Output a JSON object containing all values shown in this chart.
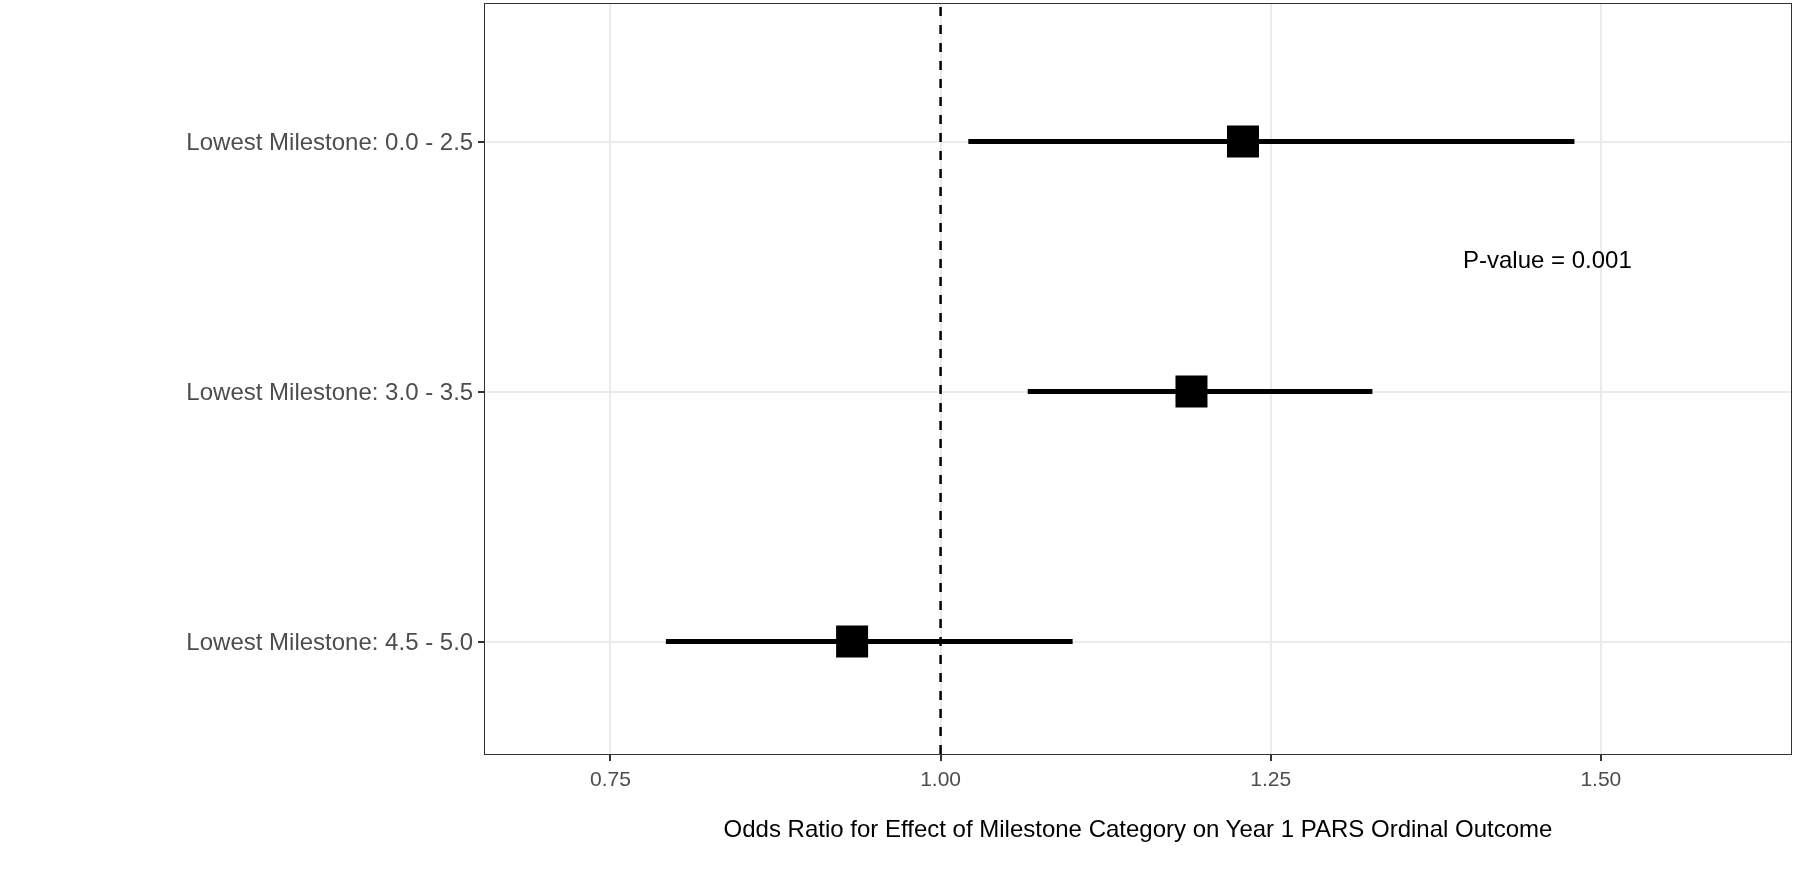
{
  "chart_data": {
    "type": "scatter",
    "orientation": "horizontal",
    "xlabel": "Odds Ratio for Effect of Milestone Category on Year 1 PARS Ordinal Outcome",
    "categories": [
      "Lowest Milestone: 0.0 - 2.5",
      "Lowest Milestone: 3.0 - 3.5",
      "Lowest Milestone: 4.5 - 5.0"
    ],
    "values": [
      1.229,
      1.19,
      0.933
    ],
    "errors": [
      [
        1.021,
        1.48
      ],
      [
        1.066,
        1.327
      ],
      [
        0.792,
        1.1
      ]
    ],
    "color": "#000000",
    "marker": "square",
    "xlim": [
      0.655,
      1.644
    ],
    "xticks": [
      0.75,
      {
        "value": 1.0,
        "label": "1.00"
      },
      1.25,
      {
        "value": 1.5,
        "label": "1.50"
      }
    ],
    "ref_lines": [
      {
        "axis": "x",
        "value": 1.0,
        "line_style": "dashed",
        "color": "#000000"
      }
    ],
    "annotations": [
      "P-value = 0.001"
    ],
    "grid": true,
    "legend": false
  }
}
